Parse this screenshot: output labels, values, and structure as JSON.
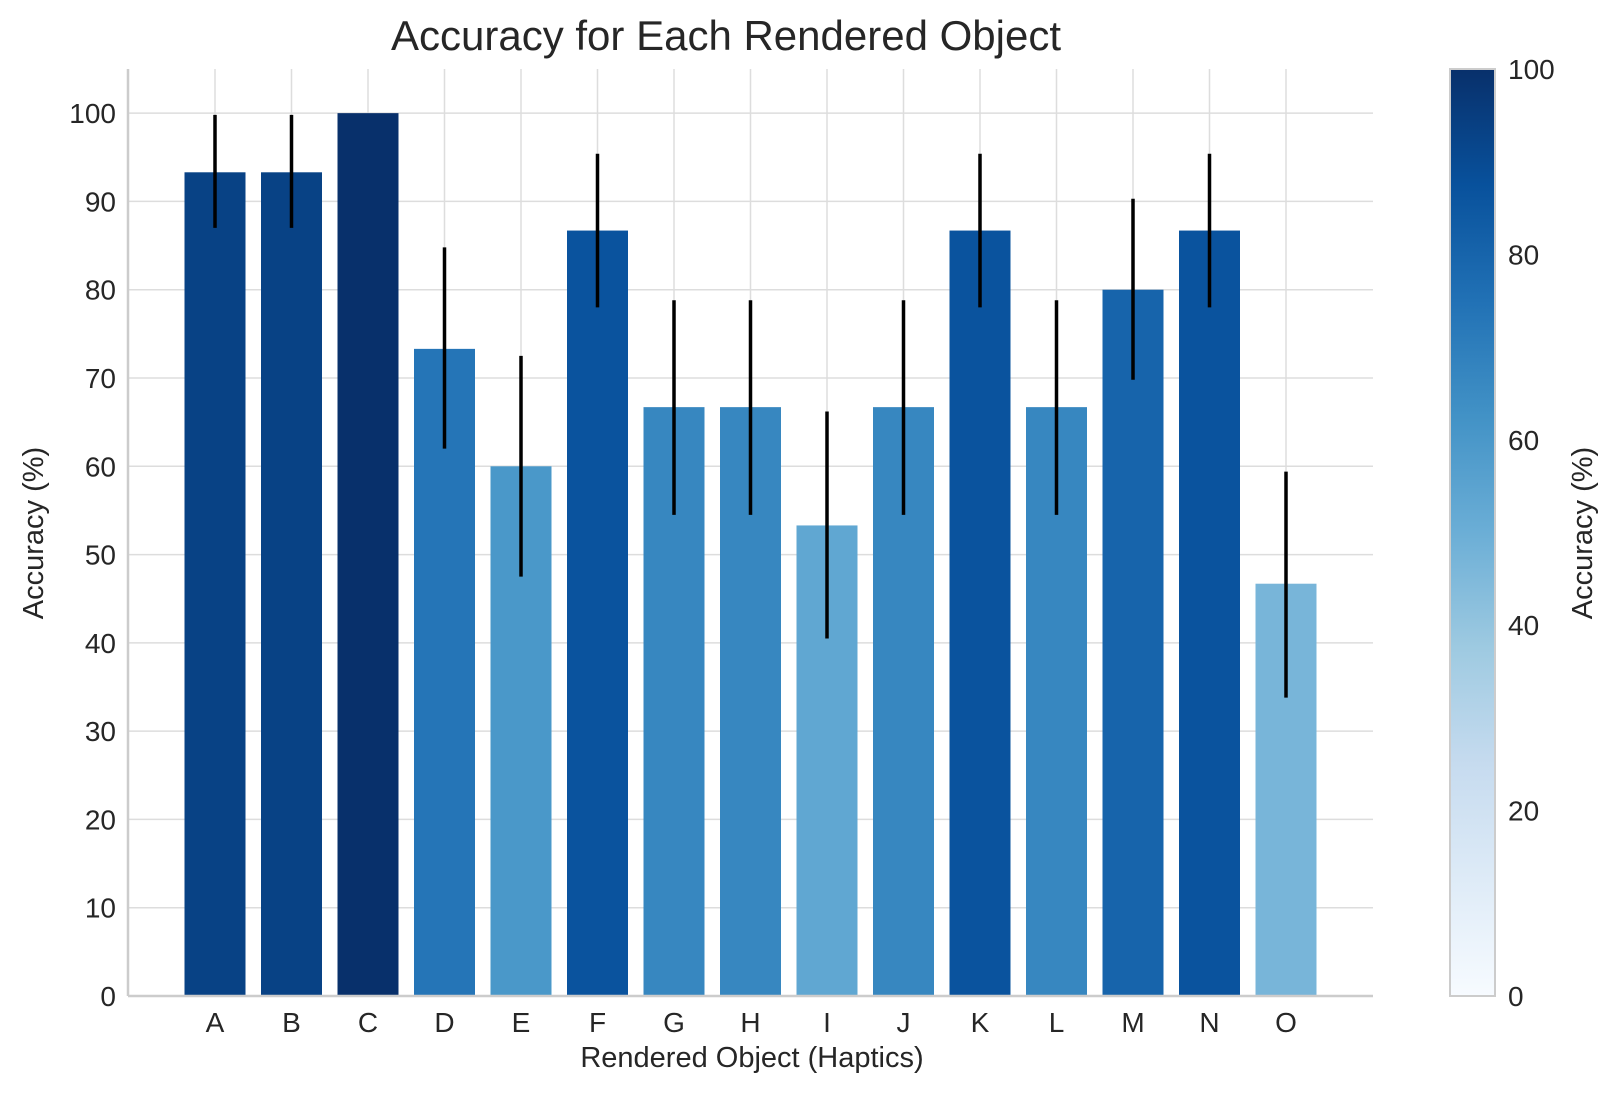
{
  "chart_data": {
    "type": "bar",
    "title": "Accuracy for Each Rendered Object",
    "xlabel": "Rendered Object (Haptics)",
    "ylabel": "Accuracy (%)",
    "categories": [
      "A",
      "B",
      "C",
      "D",
      "E",
      "F",
      "G",
      "H",
      "I",
      "J",
      "K",
      "L",
      "M",
      "N",
      "O"
    ],
    "values": [
      93.3,
      93.3,
      100,
      73.3,
      60,
      86.7,
      66.7,
      66.7,
      53.3,
      66.7,
      86.7,
      66.7,
      80,
      86.7,
      46.7
    ],
    "error_low": [
      87.0,
      87.0,
      100,
      62.0,
      47.5,
      78.0,
      54.5,
      54.5,
      40.5,
      54.5,
      78.0,
      54.5,
      69.8,
      78.0,
      33.8
    ],
    "error_high": [
      99.8,
      99.8,
      100,
      84.8,
      72.5,
      95.4,
      78.8,
      78.8,
      66.2,
      78.8,
      95.4,
      78.8,
      90.3,
      95.4,
      59.4
    ],
    "ylim": [
      0,
      105
    ],
    "yticks": [
      0,
      10,
      20,
      30,
      40,
      50,
      60,
      70,
      80,
      90,
      100
    ],
    "grid": true,
    "colorbar": {
      "label": "Accuracy (%)",
      "ticks": [
        0,
        20,
        40,
        60,
        80,
        100
      ],
      "range": [
        0,
        100
      ],
      "colormap": "Blues"
    }
  }
}
